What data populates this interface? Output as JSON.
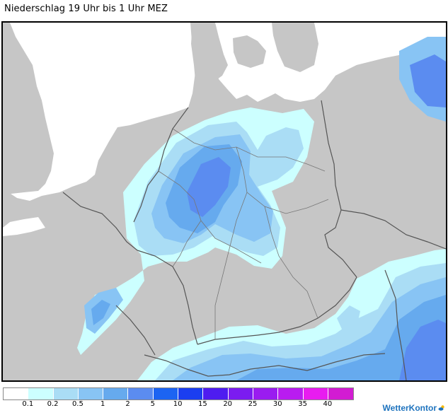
{
  "title": "Niederschlag 19 Uhr bis 1 Uhr MEZ",
  "map": {
    "region": "Deutschland",
    "land_color": "#c6c6c6",
    "sea_color": "#ffffff",
    "border_color": "#555555",
    "border_icon": "country-border-lines"
  },
  "legend": {
    "colors": [
      "#ffffff",
      "#ccffff",
      "#aaddf5",
      "#88c4f4",
      "#66aaee",
      "#5b8cf0",
      "#1c64f2",
      "#1b3ef0",
      "#4e1cf0",
      "#7b1cf0",
      "#9a1cf0",
      "#b91cf0",
      "#e81cf0",
      "#d21cd2"
    ],
    "labels": [
      "0.1",
      "0.2",
      "0.5",
      "1",
      "2",
      "5",
      "10",
      "15",
      "20",
      "25",
      "30",
      "35",
      "40"
    ]
  },
  "brand": {
    "name": "WetterKontor",
    "color": "#1e73be",
    "icon": "sun-cloud-icon"
  }
}
